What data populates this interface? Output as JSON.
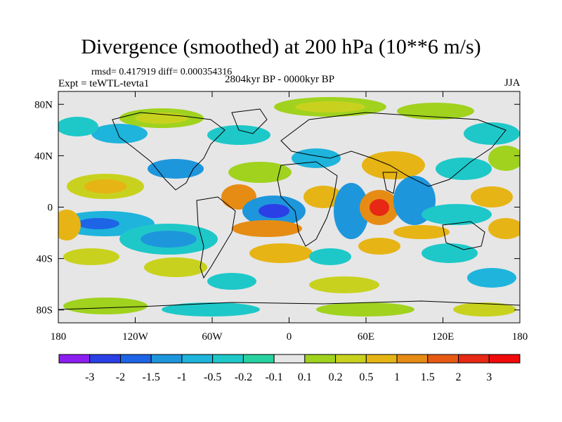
{
  "title": "Divergence (smoothed) at 200 hPa (10**6 m/s)",
  "stats": "rmsd= 0.417919 diff= 0.000354316",
  "experiment": "Expt = teWTL-tevta1",
  "period": "2804kyr BP - 0000kyr BP",
  "season": "JJA",
  "lat_ticks": [
    "80N",
    "40N",
    "0",
    "40S",
    "80S"
  ],
  "lon_ticks": [
    "180",
    "120W",
    "60W",
    "0",
    "60E",
    "120E",
    "180"
  ],
  "colorbar": {
    "labels": [
      "-3",
      "-2",
      "-1.5",
      "-1",
      "-0.5",
      "-0.2",
      "-0.1",
      "0.1",
      "0.2",
      "0.5",
      "1",
      "1.5",
      "2",
      "3"
    ],
    "colors": [
      "#8c1ef0",
      "#2a3fe6",
      "#1e64e6",
      "#1e96dc",
      "#1eb4dc",
      "#1ec8c8",
      "#28d2a0",
      "#e6e6e6",
      "#a0d21e",
      "#c8d21e",
      "#e6b414",
      "#e68c14",
      "#e65a14",
      "#e62814",
      "#f00a0a"
    ]
  },
  "map_colors": {
    "land_outline": "#000000",
    "background": "#e6e6e6"
  }
}
